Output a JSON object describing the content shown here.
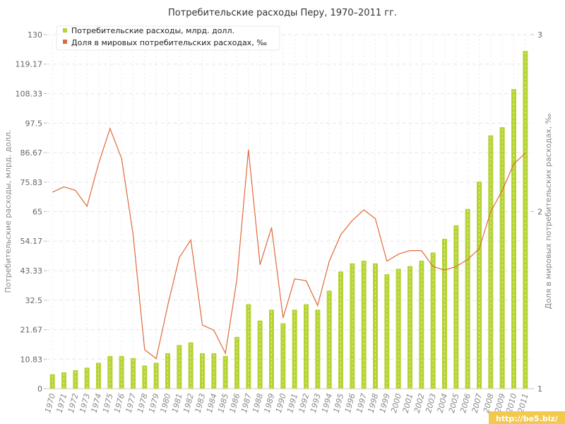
{
  "chart_data": {
    "type": "bar",
    "title": "Потребительские расходы Перу, 1970–2011 гг.",
    "ylabel_left": "Потребительские расходы, млрд. долл.",
    "ylabel_right": "Доля в мировых потребительских расходах, ‰",
    "y_left_lim": [
      0,
      130
    ],
    "y_left_ticks": [
      "0",
      "10.83",
      "21.67",
      "32.5",
      "43.33",
      "54.17",
      "65",
      "75.83",
      "86.67",
      "97.5",
      "108.33",
      "119.17",
      "130"
    ],
    "y_right_lim": [
      1,
      3
    ],
    "y_right_ticks": [
      "1",
      "2",
      "3"
    ],
    "grid": true,
    "legend_position": "top-left",
    "categories": [
      "1970",
      "1971",
      "1972",
      "1973",
      "1974",
      "1975",
      "1976",
      "1977",
      "1978",
      "1979",
      "1980",
      "1981",
      "1982",
      "1983",
      "1984",
      "1985",
      "1986",
      "1987",
      "1988",
      "1989",
      "1990",
      "1991",
      "1992",
      "1993",
      "1994",
      "1995",
      "1996",
      "1997",
      "1998",
      "1999",
      "2000",
      "2001",
      "2002",
      "2003",
      "2004",
      "2005",
      "2006",
      "2007",
      "2008",
      "2009",
      "2010",
      "2011"
    ],
    "series": [
      {
        "name": "Потребительские расходы, млрд. долл.",
        "type": "bar",
        "axis": "left",
        "color": "#b5d334",
        "values": [
          5.3,
          6.0,
          6.8,
          7.7,
          9.5,
          12.0,
          12.0,
          11.2,
          8.5,
          9.5,
          13.0,
          16.0,
          17.0,
          13.0,
          13.0,
          12.0,
          19.0,
          31.0,
          25.0,
          29.0,
          24.0,
          29.0,
          31.0,
          29.0,
          36.0,
          43.0,
          46.0,
          47.0,
          46.0,
          42.0,
          44.0,
          45.0,
          47.0,
          50.0,
          55.0,
          60.0,
          66.0,
          76.0,
          93.0,
          96.0,
          110.0,
          124.0
        ]
      },
      {
        "name": "Доля в мировых потребительских расходах, ‰",
        "type": "line",
        "axis": "right",
        "color": "#e06a3a",
        "values": [
          2.11,
          2.14,
          2.12,
          2.03,
          2.27,
          2.47,
          2.3,
          1.87,
          1.22,
          1.17,
          1.47,
          1.74,
          1.84,
          1.36,
          1.33,
          1.2,
          1.62,
          2.35,
          1.7,
          1.91,
          1.4,
          1.62,
          1.61,
          1.47,
          1.72,
          1.87,
          1.95,
          2.01,
          1.96,
          1.72,
          1.76,
          1.78,
          1.78,
          1.69,
          1.67,
          1.69,
          1.73,
          1.79,
          2.0,
          2.12,
          2.27,
          2.33
        ]
      }
    ]
  },
  "watermark": "http://be5.biz/"
}
